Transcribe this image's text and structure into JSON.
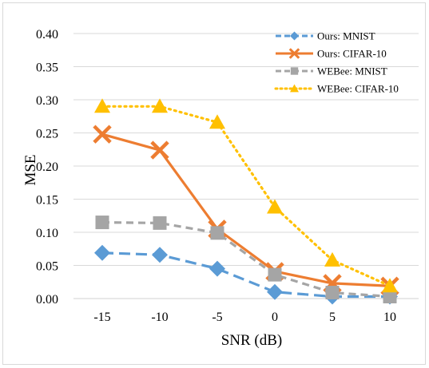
{
  "chart_data": {
    "type": "line",
    "xlabel": "SNR (dB)",
    "ylabel": "MSE",
    "categories": [
      "-15",
      "-10",
      "-5",
      "0",
      "5",
      "10"
    ],
    "ylim": [
      0,
      0.4
    ],
    "yticks": [
      "0.00",
      "0.05",
      "0.10",
      "0.15",
      "0.20",
      "0.25",
      "0.30",
      "0.35",
      "0.40"
    ],
    "grid": "horizontal",
    "legend_position": "top-right",
    "series": [
      {
        "name": "Ours: MNIST",
        "values": [
          0.069,
          0.066,
          0.045,
          0.01,
          0.003,
          0.003
        ],
        "color": "#5b9bd5",
        "style": "long-dash",
        "marker": "diamond"
      },
      {
        "name": "Ours: CIFAR-10",
        "values": [
          0.248,
          0.224,
          0.105,
          0.041,
          0.023,
          0.019
        ],
        "color": "#ed7d31",
        "style": "solid",
        "marker": "x"
      },
      {
        "name": "WEBee: MNIST",
        "values": [
          0.115,
          0.114,
          0.099,
          0.036,
          0.009,
          0.003
        ],
        "color": "#a5a5a5",
        "style": "dash",
        "marker": "square"
      },
      {
        "name": "WEBee: CIFAR-10",
        "values": [
          0.29,
          0.29,
          0.266,
          0.138,
          0.058,
          0.019
        ],
        "color": "#ffc000",
        "style": "dotted",
        "marker": "triangle"
      }
    ]
  }
}
